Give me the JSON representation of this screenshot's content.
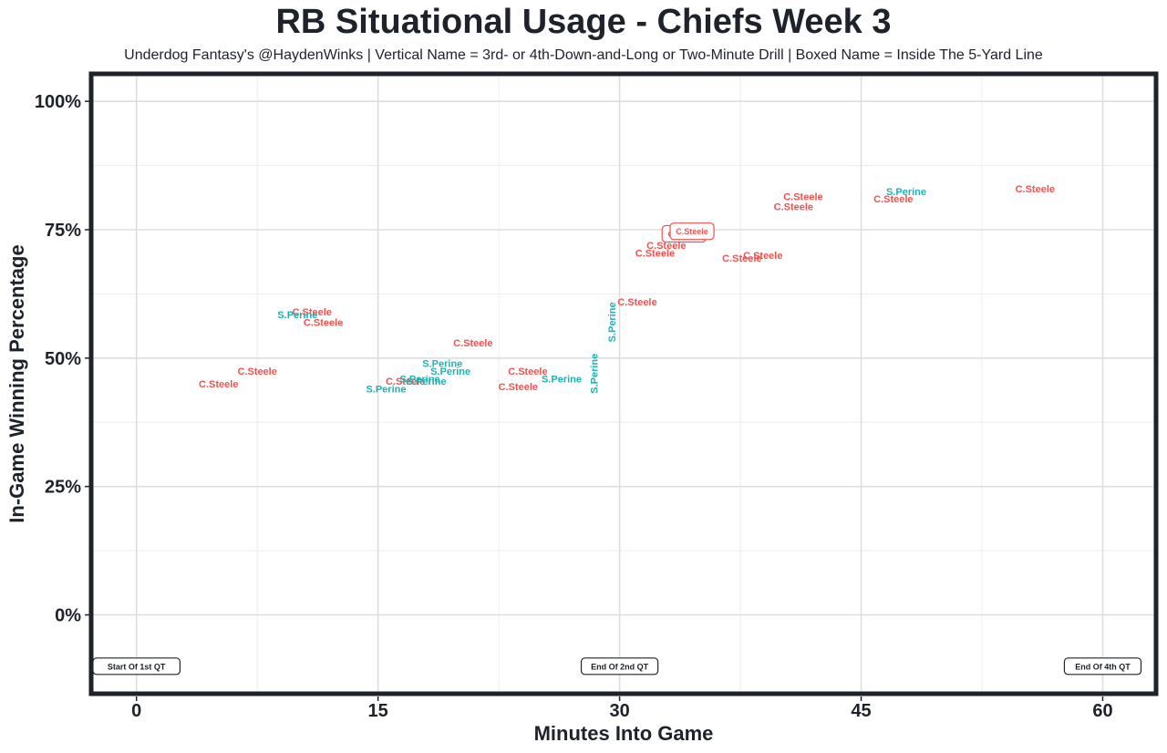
{
  "chart_data": {
    "type": "scatter",
    "title": "RB Situational Usage - Chiefs Week 3",
    "subtitle": "Underdog Fantasy's @HaydenWinks | Vertical Name = 3rd- or 4th-Down-and-Long or Two-Minute Drill | Boxed Name = Inside The 5-Yard Line",
    "xlabel": "Minutes Into Game",
    "ylabel": "In-Game Winning Percentage",
    "xlim": [
      -2.7,
      63.2
    ],
    "ylim": [
      -15,
      105
    ],
    "x_ticks": [
      0,
      15,
      30,
      45,
      60
    ],
    "x_tick_labels": [
      "0",
      "15",
      "30",
      "45",
      "60"
    ],
    "y_ticks": [
      0,
      25,
      50,
      75,
      100
    ],
    "y_tick_labels": [
      "0%",
      "25%",
      "50%",
      "75%",
      "100%"
    ],
    "grid": true,
    "legend": "none",
    "colors": {
      "C.Steele": "#f0524f",
      "S.Perine": "#1db3b3"
    },
    "series": [
      {
        "name": "C.Steele",
        "points": [
          {
            "x": 5.1,
            "y": 45,
            "label": "C.Steele",
            "style": "normal"
          },
          {
            "x": 7.5,
            "y": 47.5,
            "label": "C.Steele",
            "style": "normal"
          },
          {
            "x": 10.9,
            "y": 59,
            "label": "C.Steele",
            "style": "normal"
          },
          {
            "x": 11.6,
            "y": 57,
            "label": "C.Steele",
            "style": "normal"
          },
          {
            "x": 16.7,
            "y": 45.5,
            "label": "C.Steele",
            "style": "normal"
          },
          {
            "x": 20.9,
            "y": 53,
            "label": "C.Steele",
            "style": "normal"
          },
          {
            "x": 24.3,
            "y": 47.5,
            "label": "C.Steele",
            "style": "normal"
          },
          {
            "x": 23.7,
            "y": 44.5,
            "label": "C.Steele",
            "style": "normal"
          },
          {
            "x": 31.1,
            "y": 61,
            "label": "C.Steele",
            "style": "normal"
          },
          {
            "x": 32.2,
            "y": 70.5,
            "label": "C.Steele",
            "style": "normal"
          },
          {
            "x": 32.9,
            "y": 72,
            "label": "C.Steele",
            "style": "normal"
          },
          {
            "x": 34.0,
            "y": 74.2,
            "label": "C.Steele",
            "style": "boxed"
          },
          {
            "x": 34.5,
            "y": 74.7,
            "label": "C.Steele",
            "style": "boxed"
          },
          {
            "x": 37.6,
            "y": 69.5,
            "label": "C.Steele",
            "style": "normal"
          },
          {
            "x": 38.9,
            "y": 70,
            "label": "C.Steele",
            "style": "normal"
          },
          {
            "x": 41.4,
            "y": 81.5,
            "label": "C.Steele",
            "style": "normal"
          },
          {
            "x": 40.8,
            "y": 79.5,
            "label": "C.Steele",
            "style": "normal"
          },
          {
            "x": 47.0,
            "y": 81,
            "label": "C.Steele",
            "style": "normal"
          },
          {
            "x": 55.8,
            "y": 83,
            "label": "C.Steele",
            "style": "normal"
          }
        ]
      },
      {
        "name": "S.Perine",
        "points": [
          {
            "x": 10.0,
            "y": 58.5,
            "label": "S.Perine",
            "style": "normal"
          },
          {
            "x": 15.5,
            "y": 44,
            "label": "S.Perine",
            "style": "normal"
          },
          {
            "x": 17.6,
            "y": 46,
            "label": "S.Perine",
            "style": "normal"
          },
          {
            "x": 18.0,
            "y": 45.5,
            "label": "S.Perine",
            "style": "normal"
          },
          {
            "x": 19.0,
            "y": 49,
            "label": "S.Perine",
            "style": "normal"
          },
          {
            "x": 19.5,
            "y": 47.5,
            "label": "S.Perine",
            "style": "normal"
          },
          {
            "x": 26.4,
            "y": 46,
            "label": "S.Perine",
            "style": "normal"
          },
          {
            "x": 28.4,
            "y": 47,
            "label": "S.Perine",
            "style": "vertical"
          },
          {
            "x": 29.5,
            "y": 57,
            "label": "S.Perine",
            "style": "vertical"
          },
          {
            "x": 47.8,
            "y": 82.5,
            "label": "S.Perine",
            "style": "normal"
          }
        ]
      }
    ],
    "annotations": [
      {
        "x": 0,
        "y": -10,
        "label": "Start Of 1st QT"
      },
      {
        "x": 30,
        "y": -10,
        "label": "End Of 2nd QT"
      },
      {
        "x": 60,
        "y": -10,
        "label": "End Of 4th QT"
      }
    ]
  }
}
